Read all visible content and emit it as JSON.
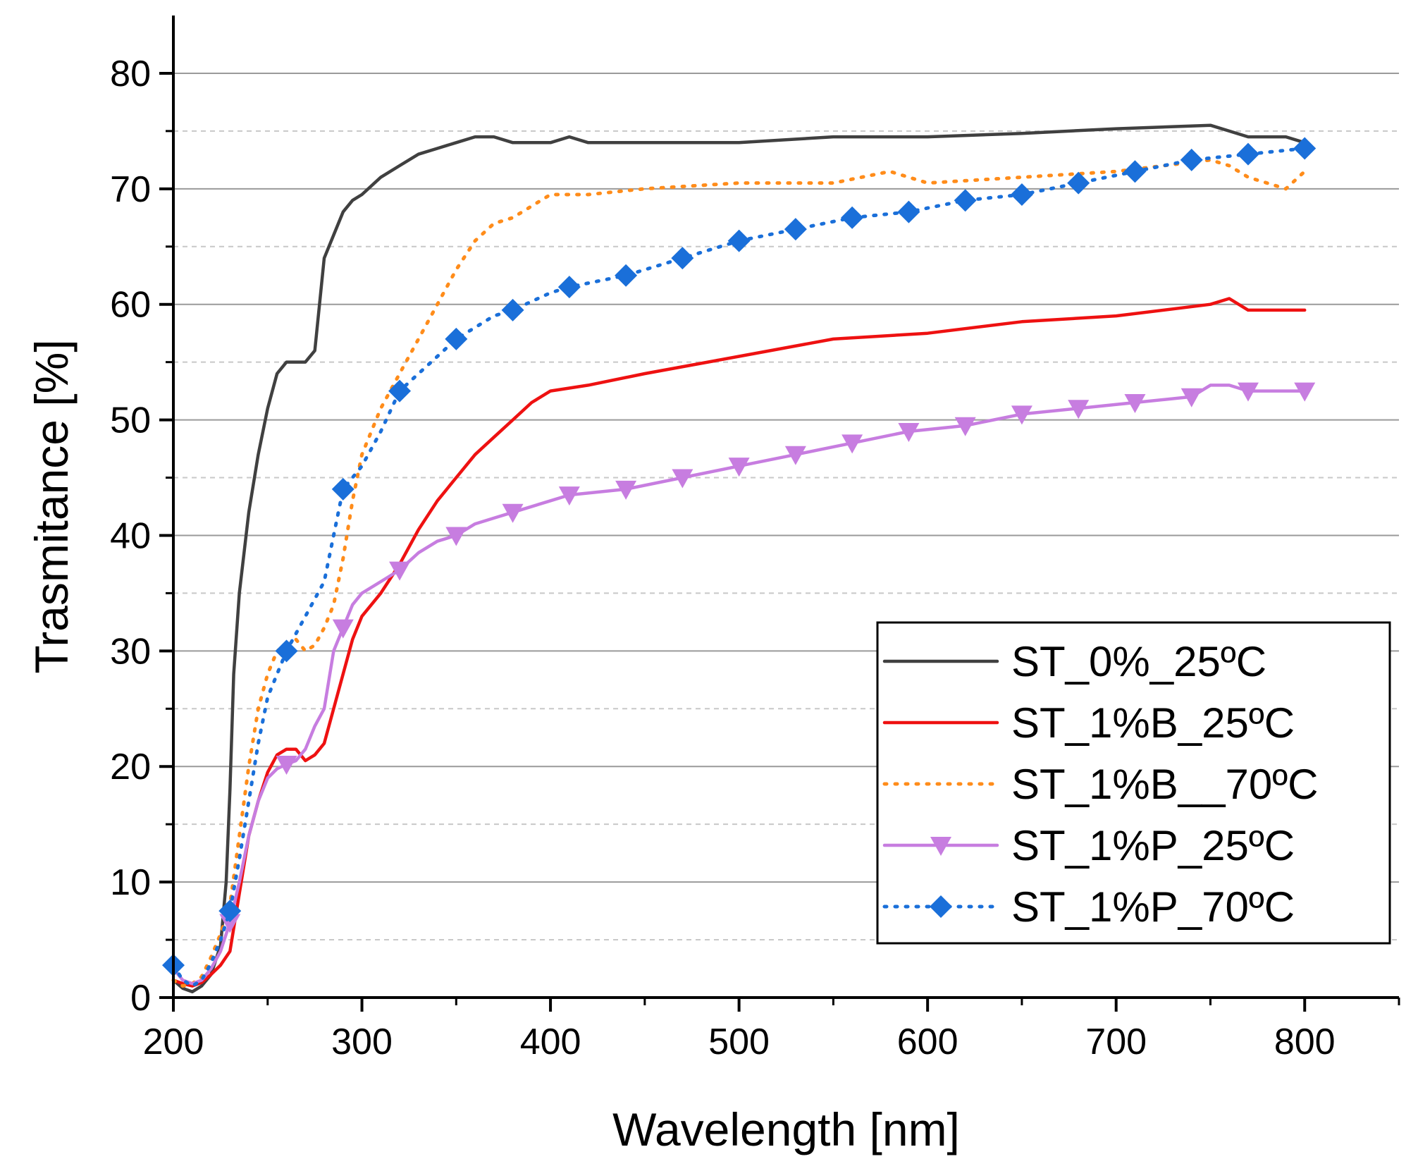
{
  "chart_data": {
    "type": "line",
    "xlabel": "Wavelength [nm]",
    "ylabel": "Trasmitance [%]",
    "xlim": [
      200,
      850
    ],
    "ylim": [
      0,
      85
    ],
    "xticks": [
      200,
      300,
      400,
      500,
      600,
      700,
      800
    ],
    "yticks": [
      0,
      10,
      20,
      30,
      40,
      50,
      60,
      70,
      80
    ],
    "grid": true,
    "legend_position": "bottom-right",
    "series": [
      {
        "name": "ST_0%_25ºC",
        "color": "#404040",
        "style": "solid",
        "marker": "none",
        "x": [
          200,
          205,
          210,
          215,
          220,
          225,
          228,
          230,
          232,
          235,
          240,
          245,
          250,
          255,
          260,
          265,
          270,
          275,
          280,
          285,
          290,
          295,
          300,
          310,
          320,
          330,
          340,
          350,
          360,
          370,
          380,
          400,
          410,
          420,
          450,
          500,
          550,
          600,
          650,
          700,
          750,
          760,
          770,
          780,
          790,
          800
        ],
        "y": [
          1.5,
          0.8,
          0.5,
          1.0,
          2.0,
          4.5,
          10,
          18,
          28,
          35,
          42,
          47,
          51,
          54,
          55,
          55,
          55,
          56,
          64,
          66,
          68,
          69,
          69.5,
          71,
          72,
          73,
          73.5,
          74,
          74.5,
          74.5,
          74,
          74,
          74.5,
          74,
          74,
          74,
          74.5,
          74.5,
          74.8,
          75.2,
          75.5,
          75,
          74.5,
          74.5,
          74.5,
          74
        ]
      },
      {
        "name": "ST_1%B_25ºC",
        "color": "#ee1111",
        "style": "solid",
        "marker": "none",
        "x": [
          200,
          205,
          210,
          215,
          220,
          225,
          230,
          235,
          240,
          245,
          250,
          255,
          260,
          265,
          270,
          275,
          280,
          285,
          290,
          295,
          300,
          310,
          320,
          330,
          340,
          350,
          360,
          370,
          380,
          390,
          400,
          420,
          450,
          500,
          550,
          600,
          650,
          700,
          750,
          760,
          770,
          780,
          790,
          800
        ],
        "y": [
          1.5,
          1.2,
          1.0,
          1.3,
          2.0,
          2.8,
          4.0,
          9,
          14,
          17,
          19.5,
          21,
          21.5,
          21.5,
          20.5,
          21,
          22,
          25,
          28,
          31,
          33,
          35,
          37.5,
          40.5,
          43,
          45,
          47,
          48.5,
          50,
          51.5,
          52.5,
          53,
          54,
          55.5,
          57,
          57.5,
          58.5,
          59,
          60,
          60.5,
          59.5,
          59.5,
          59.5,
          59.5
        ]
      },
      {
        "name": "ST_1%B__70ºC",
        "color": "#ff8c1a",
        "style": "dotted",
        "marker": "none",
        "x": [
          200,
          205,
          210,
          215,
          220,
          225,
          230,
          235,
          240,
          245,
          250,
          255,
          260,
          265,
          270,
          275,
          280,
          285,
          290,
          295,
          300,
          310,
          320,
          330,
          340,
          350,
          360,
          370,
          380,
          390,
          400,
          410,
          420,
          450,
          500,
          550,
          580,
          600,
          650,
          700,
          750,
          760,
          770,
          780,
          790,
          800
        ],
        "y": [
          1.5,
          1.0,
          1.2,
          1.8,
          3.5,
          5.5,
          8,
          14,
          20,
          25,
          28,
          30,
          30.5,
          31,
          30,
          30.5,
          32,
          34,
          38,
          43,
          47,
          51,
          54,
          57,
          60,
          63,
          65.5,
          67,
          67.5,
          68.5,
          69.5,
          69.5,
          69.5,
          70,
          70.5,
          70.5,
          71.5,
          70.5,
          71,
          71.5,
          72.5,
          72,
          71,
          70.5,
          70,
          71.5
        ]
      },
      {
        "name": "ST_1%P_25ºC",
        "color": "#c77de0",
        "style": "solid",
        "marker": "triangle-down",
        "x": [
          200,
          205,
          210,
          215,
          220,
          225,
          230,
          235,
          240,
          245,
          250,
          255,
          260,
          265,
          270,
          275,
          280,
          285,
          290,
          295,
          300,
          310,
          320,
          330,
          340,
          350,
          360,
          370,
          380,
          400,
          410,
          440,
          470,
          500,
          530,
          560,
          590,
          620,
          650,
          680,
          710,
          740,
          750,
          760,
          770,
          780,
          790,
          800
        ],
        "y": [
          2.5,
          1.5,
          1.2,
          1.5,
          2.5,
          4.0,
          6.5,
          10,
          14,
          17,
          19,
          19.8,
          20.2,
          20.5,
          21.5,
          23.5,
          25,
          30,
          32,
          34,
          35,
          36,
          37,
          38.5,
          39.5,
          40,
          41,
          41.5,
          42,
          43,
          43.5,
          44,
          45,
          46,
          47,
          48,
          49,
          49.5,
          50.5,
          51,
          51.5,
          52,
          53,
          53,
          52.5,
          52.5,
          52.5,
          52.5
        ]
      },
      {
        "name": "ST_1%P_70ºC",
        "color": "#1a6fd9",
        "style": "dotted",
        "marker": "diamond",
        "x": [
          200,
          205,
          210,
          215,
          220,
          225,
          230,
          235,
          240,
          245,
          250,
          260,
          270,
          280,
          290,
          300,
          310,
          320,
          330,
          340,
          350,
          360,
          370,
          380,
          400,
          410,
          440,
          470,
          500,
          530,
          560,
          590,
          620,
          650,
          680,
          710,
          740,
          770,
          800
        ],
        "y": [
          2.8,
          1.5,
          1.0,
          1.5,
          3.0,
          5.0,
          7.5,
          12,
          17,
          22,
          26,
          30,
          33,
          36,
          44,
          46,
          49,
          52.5,
          54,
          55.5,
          57,
          58,
          59,
          59.5,
          61,
          61.5,
          62.5,
          64,
          65.5,
          66.5,
          67.5,
          68,
          69,
          69.5,
          70.5,
          71.5,
          72.5,
          73,
          73.5
        ]
      }
    ]
  }
}
